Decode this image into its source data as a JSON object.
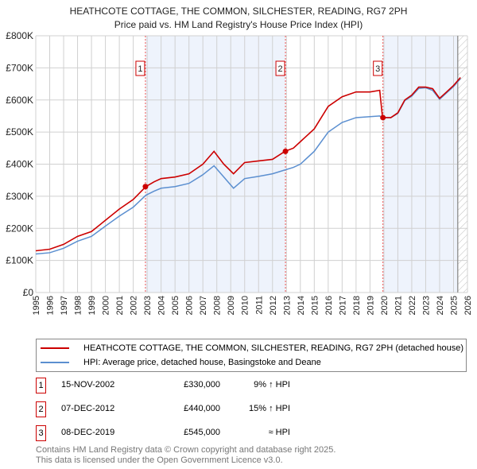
{
  "chart_data": {
    "type": "line",
    "title": "HEATHCOTE COTTAGE, THE COMMON, SILCHESTER, READING, RG7 2PH",
    "subtitle": "Price paid vs. HM Land Registry's House Price Index (HPI)",
    "xlim": [
      1995,
      2026
    ],
    "ylim": [
      0,
      800000
    ],
    "x_ticks": [
      "1995",
      "1996",
      "1997",
      "1998",
      "1999",
      "2000",
      "2001",
      "2002",
      "2003",
      "2004",
      "2005",
      "2006",
      "2007",
      "2008",
      "2009",
      "2010",
      "2011",
      "2012",
      "2013",
      "2014",
      "2015",
      "2016",
      "2017",
      "2018",
      "2019",
      "2020",
      "2021",
      "2022",
      "2023",
      "2024",
      "2025",
      "2026"
    ],
    "y_ticks": [
      {
        "v": 0,
        "l": "£0"
      },
      {
        "v": 100000,
        "l": "£100K"
      },
      {
        "v": 200000,
        "l": "£200K"
      },
      {
        "v": 300000,
        "l": "£300K"
      },
      {
        "v": 400000,
        "l": "£400K"
      },
      {
        "v": 500000,
        "l": "£500K"
      },
      {
        "v": 600000,
        "l": "£600K"
      },
      {
        "v": 700000,
        "l": "£700K"
      },
      {
        "v": 800000,
        "l": "£800K"
      }
    ],
    "grid": true,
    "series": [
      {
        "name": "HEATHCOTE COTTAGE, THE COMMON, SILCHESTER, READING, RG7 2PH (detached house)",
        "color": "#cc0000",
        "x": [
          1995,
          1996,
          1997,
          1998,
          1999,
          2000,
          2001,
          2002,
          2002.9,
          2003.5,
          2004,
          2005,
          2006,
          2007,
          2007.8,
          2008.5,
          2009.2,
          2010,
          2011,
          2012,
          2012.9,
          2013.5,
          2014,
          2015,
          2016,
          2017,
          2018,
          2019,
          2019.7,
          2019.9,
          2020.5,
          2021,
          2021.5,
          2022,
          2022.5,
          2023,
          2023.5,
          2024,
          2024.5,
          2025,
          2025.5
        ],
        "y": [
          130000,
          135000,
          150000,
          175000,
          190000,
          225000,
          260000,
          290000,
          330000,
          345000,
          355000,
          360000,
          370000,
          400000,
          440000,
          400000,
          370000,
          405000,
          410000,
          415000,
          440000,
          450000,
          470000,
          510000,
          580000,
          610000,
          625000,
          625000,
          630000,
          545000,
          545000,
          560000,
          600000,
          615000,
          640000,
          640000,
          635000,
          605000,
          625000,
          645000,
          670000
        ]
      },
      {
        "name": "HPI: Average price, detached house, Basingstoke and Deane",
        "color": "#5b8fd0",
        "x": [
          1995,
          1996,
          1997,
          1998,
          1999,
          2000,
          2001,
          2002,
          2002.9,
          2003.5,
          2004,
          2005,
          2006,
          2007,
          2007.8,
          2008.5,
          2009.2,
          2010,
          2011,
          2012,
          2012.9,
          2013.5,
          2014,
          2015,
          2016,
          2017,
          2018,
          2019,
          2019.7,
          2019.9,
          2020.5,
          2021,
          2021.5,
          2022,
          2022.5,
          2023,
          2023.5,
          2024,
          2024.5,
          2025,
          2025.5
        ],
        "y": [
          120000,
          124000,
          138000,
          160000,
          175000,
          207000,
          238000,
          266000,
          303000,
          316000,
          325000,
          330000,
          340000,
          367000,
          395000,
          360000,
          325000,
          355000,
          362000,
          370000,
          382000,
          390000,
          400000,
          440000,
          500000,
          530000,
          545000,
          548000,
          550000,
          545000,
          545000,
          558000,
          598000,
          612000,
          636000,
          638000,
          630000,
          602000,
          622000,
          642000,
          667000
        ]
      }
    ],
    "sales": [
      {
        "label": "1",
        "x": 2002.875,
        "y": 330000
      },
      {
        "label": "2",
        "x": 2012.93,
        "y": 440000
      },
      {
        "label": "3",
        "x": 2019.93,
        "y": 545000
      }
    ],
    "shaded": [
      [
        2002.875,
        2012.93
      ],
      [
        2019.93,
        2025.3
      ]
    ],
    "hatch_from": 2025.3
  },
  "legend": {
    "red": "HEATHCOTE COTTAGE, THE COMMON, SILCHESTER, READING, RG7 2PH (detached house)",
    "blue": "HPI: Average price, detached house, Basingstoke and Deane"
  },
  "sales_table": [
    {
      "num": "1",
      "date": "15-NOV-2002",
      "price": "£330,000",
      "hpi": "9% ↑ HPI"
    },
    {
      "num": "2",
      "date": "07-DEC-2012",
      "price": "£440,000",
      "hpi": "15% ↑ HPI"
    },
    {
      "num": "3",
      "date": "08-DEC-2019",
      "price": "£545,000",
      "hpi": "≈ HPI"
    }
  ],
  "footer": {
    "line1": "Contains HM Land Registry data © Crown copyright and database right 2025.",
    "line2": "This data is licensed under the Open Government Licence v3.0."
  }
}
